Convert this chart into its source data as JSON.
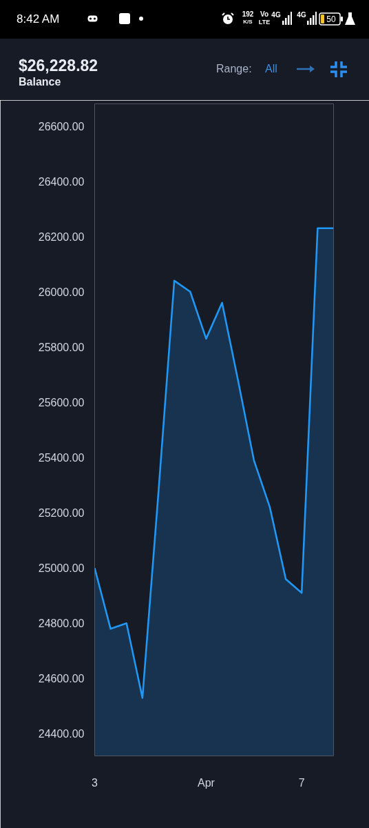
{
  "chart_data": {
    "type": "area",
    "title": "$26,228.82",
    "subtitle": "Balance",
    "annotations": [
      "8:42 AM",
      "192",
      "K/S",
      "Vo",
      "LTE",
      "4G",
      "4G",
      "50",
      "Range:",
      "All"
    ],
    "categories": [
      "3",
      null,
      null,
      null,
      null,
      null,
      null,
      "Apr",
      null,
      null,
      null,
      null,
      null,
      "7",
      null,
      null
    ],
    "series": [
      {
        "color": "#2196f3",
        "values": [
          25000,
          24780,
          24800,
          24530,
          25270,
          26040,
          26000,
          25830,
          25960,
          25680,
          25390,
          25220,
          24960,
          24910,
          26230,
          26230
        ]
      }
    ],
    "ylim": [
      24320,
      26680
    ],
    "yticks": [
      {
        "value": 24400,
        "label": "24400.00"
      },
      {
        "value": 24600,
        "label": "24600.00"
      },
      {
        "value": 24800,
        "label": "24800.00"
      },
      {
        "value": 25000,
        "label": "25000.00"
      },
      {
        "value": 25200,
        "label": "25200.00"
      },
      {
        "value": 25400,
        "label": "25400.00"
      },
      {
        "value": 25600,
        "label": "25600.00"
      },
      {
        "value": 25800,
        "label": "25800.00"
      },
      {
        "value": 26000,
        "label": "26000.00"
      },
      {
        "value": 26200,
        "label": "26200.00"
      },
      {
        "value": 26400,
        "label": "26400.00"
      },
      {
        "value": 26600,
        "label": "26600.00"
      }
    ],
    "line_style": "solid"
  }
}
